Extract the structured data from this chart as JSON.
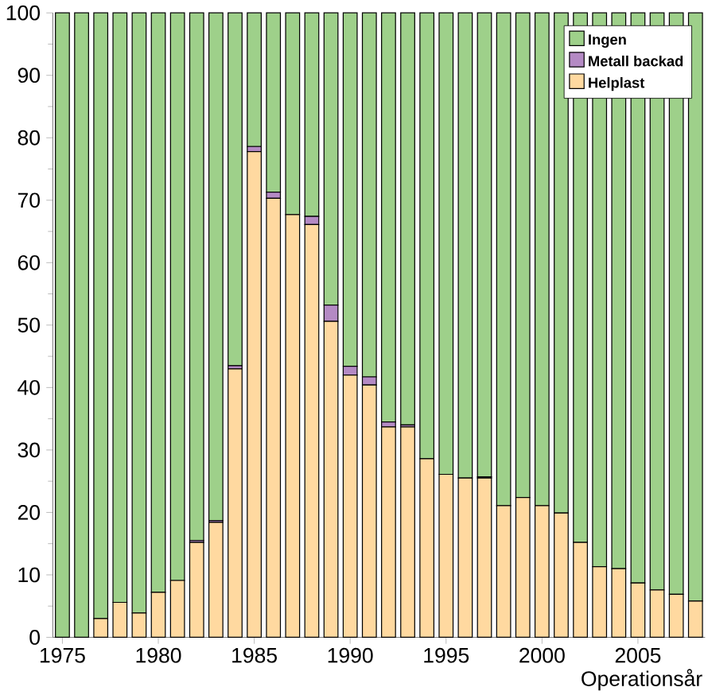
{
  "chart_data": {
    "type": "bar",
    "stacked": true,
    "xlabel": "Operationsår",
    "categories": [
      "1975",
      null,
      null,
      null,
      null,
      "1980",
      null,
      null,
      null,
      null,
      "1985",
      null,
      null,
      null,
      null,
      "1990",
      null,
      null,
      null,
      null,
      "1995",
      null,
      null,
      null,
      null,
      "2000",
      null,
      null,
      null,
      null,
      "2005",
      null,
      null,
      null
    ],
    "series": [
      {
        "name": "Helplast",
        "color": "#ffd9a0",
        "values": [
          0,
          0,
          3.0,
          5.6,
          3.9,
          7.2,
          9.1,
          15.2,
          18.4,
          43.0,
          77.8,
          70.3,
          67.7,
          66.1,
          50.6,
          42.0,
          40.4,
          33.7,
          33.7,
          28.6,
          26.1,
          25.5,
          25.5,
          21.1,
          22.4,
          21.1,
          19.9,
          15.2,
          11.3,
          11.0,
          8.7,
          7.6,
          6.9,
          5.8
        ]
      },
      {
        "name": "Metall backad",
        "color": "#b48ac4",
        "values": [
          0,
          0,
          0,
          0,
          0,
          0,
          0,
          0.3,
          0.3,
          0.5,
          0.8,
          1.0,
          null,
          1.3,
          2.6,
          1.4,
          1.3,
          0.8,
          0.3,
          null,
          0,
          0,
          0.2,
          0,
          0,
          0,
          0,
          0,
          0,
          0,
          0,
          0,
          0,
          0
        ]
      },
      {
        "name": "Ingen",
        "color": "#9ed08a",
        "values": [
          100,
          100,
          97.0,
          94.4,
          96.1,
          92.8,
          90.9,
          84.5,
          81.3,
          56.5,
          21.4,
          28.7,
          32.3,
          32.6,
          46.8,
          56.6,
          58.3,
          65.5,
          66.0,
          71.4,
          73.9,
          74.5,
          74.3,
          78.9,
          77.6,
          78.9,
          80.1,
          84.8,
          88.7,
          89.0,
          91.3,
          92.4,
          93.1,
          94.2
        ]
      }
    ],
    "ylim": [
      0,
      100
    ],
    "yticks": [
      0,
      10,
      20,
      30,
      40,
      50,
      60,
      70,
      80,
      90,
      100
    ],
    "legend": "top right",
    "grid": false
  }
}
